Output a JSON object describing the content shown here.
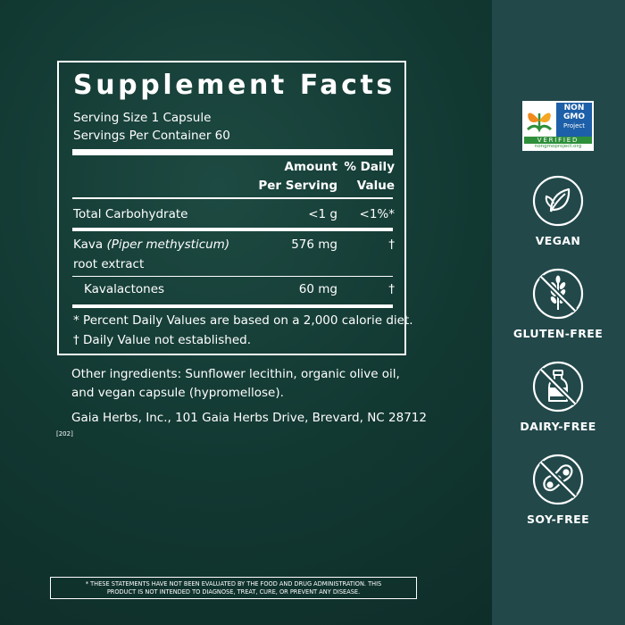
{
  "title": "Supplement Facts",
  "serving_size": "Serving Size 1 Capsule",
  "servings_per_container": "Servings Per Container 60",
  "header": {
    "amount_line1": "Amount",
    "amount_line2": "Per Serving",
    "dv_line1": "% Daily",
    "dv_line2": "Value"
  },
  "rows": [
    {
      "name": "Total Carbohydrate",
      "amount": "<1 g",
      "dv": "<1%*"
    },
    {
      "name": "Kava",
      "name_italic": "(Piper methysticum)",
      "name_line2": "root extract",
      "amount": "576 mg",
      "dv": "†"
    },
    {
      "name": "Kavalactones",
      "amount": "60 mg",
      "dv": "†"
    }
  ],
  "footnotes": [
    "*  Percent Daily Values are based on a 2,000 calorie diet.",
    "† Daily Value not established."
  ],
  "ingredients_line1": "Other ingredients: Sunflower lecithin, organic olive oil,",
  "ingredients_line2": "and vegan capsule (hypromellose).",
  "manufacturer": "Gaia Herbs, Inc., 101 Gaia Herbs Drive, Brevard, NC 28712",
  "code": "[202]",
  "disclaimer_line1": "* THESE STATEMENTS HAVE NOT BEEN EVALUATED BY THE FOOD AND DRUG ADMINISTRATION. THIS",
  "disclaimer_line2": "PRODUCT IS NOT INTENDED TO DIAGNOSE, TREAT, CURE, OR PREVENT ANY DISEASE.",
  "nongmo": {
    "non": "NON",
    "gmo": "GMO",
    "project": "Project",
    "verified": "VERIFIED",
    "url": "nongmoproject.org"
  },
  "badges": [
    {
      "label": "VEGAN",
      "icon": "leaf-icon"
    },
    {
      "label": "GLUTEN-FREE",
      "icon": "wheat-crossed-icon"
    },
    {
      "label": "DAIRY-FREE",
      "icon": "milk-bottle-crossed-icon"
    },
    {
      "label": "SOY-FREE",
      "icon": "soybean-crossed-icon"
    }
  ],
  "colors": {
    "background": "#123832",
    "sidebar": "#22484a",
    "text": "#ffffff",
    "nongmo_orange": "#f08a1c",
    "nongmo_green": "#2e8f3a",
    "nongmo_blue": "#1d5fa8"
  }
}
